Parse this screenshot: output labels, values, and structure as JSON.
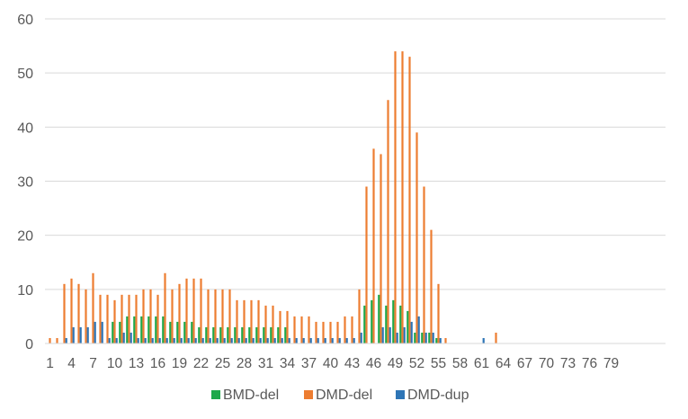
{
  "chart_data": {
    "type": "bar",
    "title": "",
    "xlabel": "",
    "ylabel": "",
    "ylim": [
      0,
      60
    ],
    "yticks": [
      0,
      10,
      20,
      30,
      40,
      50,
      60
    ],
    "grid": true,
    "legend_position": "bottom",
    "categories": [
      1,
      2,
      3,
      4,
      5,
      6,
      7,
      8,
      9,
      10,
      11,
      12,
      13,
      14,
      15,
      16,
      17,
      18,
      19,
      20,
      21,
      22,
      23,
      24,
      25,
      26,
      27,
      28,
      29,
      30,
      31,
      32,
      33,
      34,
      35,
      36,
      37,
      38,
      39,
      40,
      41,
      42,
      43,
      44,
      45,
      46,
      47,
      48,
      49,
      50,
      51,
      52,
      53,
      54,
      55,
      56,
      57,
      58,
      59,
      60,
      61,
      62,
      63,
      64,
      65,
      66,
      67,
      68,
      69,
      70,
      71,
      72,
      73,
      74,
      75,
      76,
      77,
      78,
      79
    ],
    "xtick_labels": [
      "1",
      "4",
      "7",
      "10",
      "13",
      "16",
      "19",
      "22",
      "25",
      "28",
      "31",
      "34",
      "37",
      "40",
      "43",
      "46",
      "49",
      "52",
      "55",
      "58",
      "61",
      "64",
      "67",
      "70",
      "73",
      "76",
      "79"
    ],
    "series": [
      {
        "name": "BMD-del",
        "color": "#1ea84a",
        "values": [
          0,
          0,
          0,
          0,
          0,
          0,
          0,
          0,
          0,
          4,
          4,
          5,
          5,
          5,
          5,
          5,
          5,
          4,
          4,
          4,
          4,
          3,
          3,
          3,
          3,
          3,
          3,
          3,
          3,
          3,
          3,
          3,
          3,
          3,
          0,
          0,
          0,
          0,
          0,
          0,
          0,
          0,
          0,
          0,
          7,
          8,
          9,
          7,
          8,
          7,
          6,
          2,
          2,
          2,
          1,
          0,
          0,
          0,
          0,
          0,
          0,
          0,
          0,
          0,
          0,
          0,
          0,
          0,
          0,
          0,
          0,
          0,
          0,
          0,
          0,
          0,
          0,
          0,
          0
        ]
      },
      {
        "name": "DMD-del",
        "color": "#ed7d31",
        "values": [
          1,
          1,
          11,
          12,
          11,
          10,
          13,
          9,
          9,
          8,
          9,
          9,
          9,
          10,
          10,
          9,
          13,
          10,
          11,
          12,
          12,
          12,
          10,
          10,
          10,
          10,
          8,
          8,
          8,
          8,
          7,
          7,
          6,
          6,
          5,
          5,
          5,
          4,
          4,
          4,
          4,
          5,
          5,
          10,
          29,
          36,
          35,
          45,
          54,
          54,
          53,
          39,
          29,
          21,
          11,
          1,
          0,
          0,
          0,
          0,
          0,
          0,
          2,
          0,
          0,
          0,
          0,
          0,
          0,
          0,
          0,
          0,
          0,
          0,
          0,
          0,
          0,
          0,
          0
        ]
      },
      {
        "name": "DMD-dup",
        "color": "#2e75b6",
        "values": [
          0,
          0,
          1,
          3,
          3,
          3,
          4,
          4,
          1,
          1,
          2,
          2,
          1,
          1,
          1,
          1,
          1,
          1,
          1,
          1,
          1,
          1,
          1,
          1,
          1,
          1,
          1,
          1,
          1,
          1,
          1,
          1,
          1,
          1,
          1,
          1,
          1,
          1,
          1,
          1,
          1,
          1,
          1,
          2,
          0,
          0,
          3,
          3,
          2,
          3,
          4,
          5,
          2,
          2,
          1,
          0,
          0,
          0,
          0,
          0,
          1,
          0,
          0,
          0,
          0,
          0,
          0,
          0,
          0,
          0,
          0,
          0,
          0,
          0,
          0,
          0,
          0,
          0,
          0
        ]
      }
    ]
  }
}
